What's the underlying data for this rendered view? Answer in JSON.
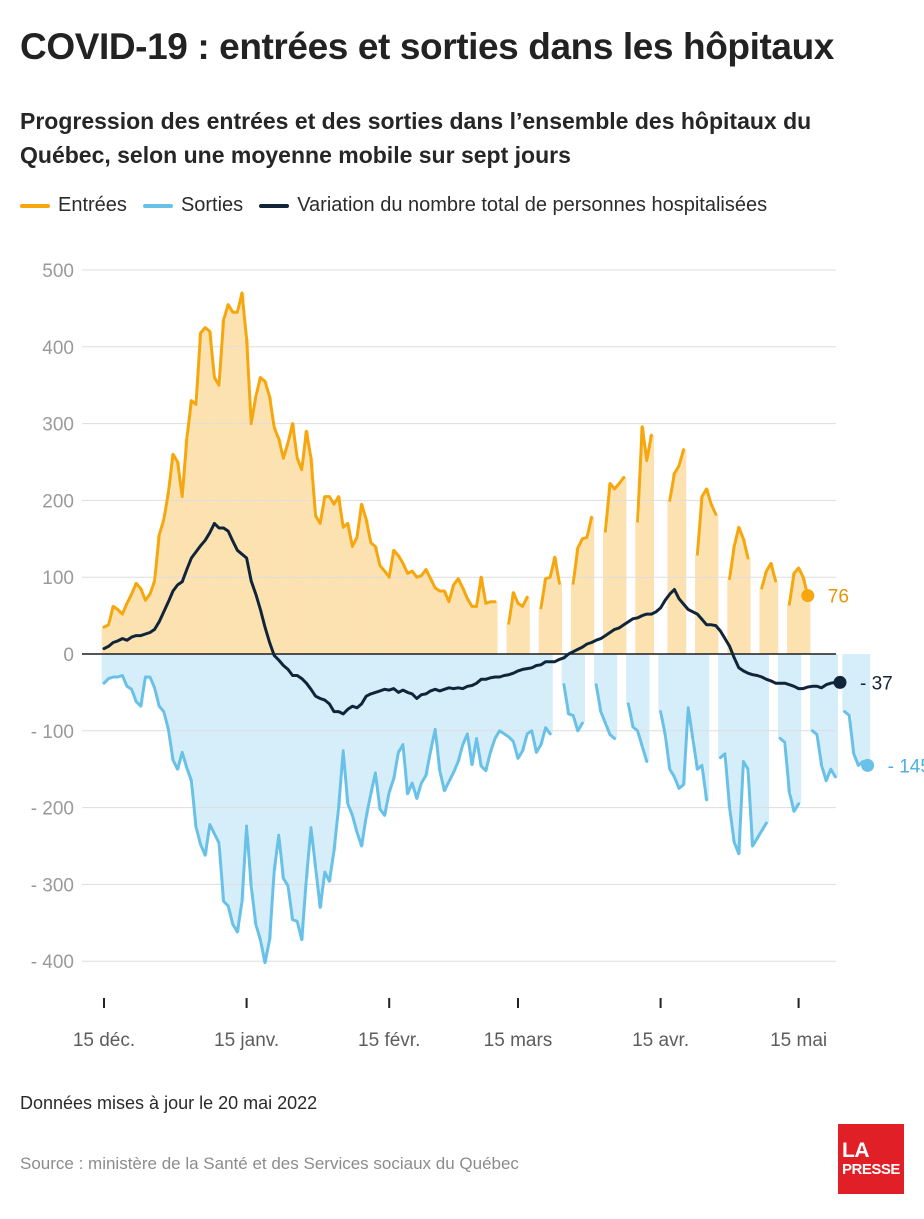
{
  "header": {
    "title": "COVID-19 : entrées et sorties dans les hôpitaux",
    "subtitle": "Progression des entrées et des sorties dans l’ensemble des hôpitaux du Québec, selon une moyenne mobile sur sept jours"
  },
  "legend": {
    "entrees": "Entrées",
    "sorties": "Sorties",
    "variation": "Variation du nombre total de personnes hospitalisées"
  },
  "colors": {
    "entrees": "#f5a70d",
    "entrees_fill": "#fde2b1",
    "sorties": "#69c1e8",
    "sorties_fill": "#d6eefa",
    "variation": "#10253a",
    "grid": "#dddddd"
  },
  "chart_data": {
    "type": "line",
    "title": "COVID-19 : entrées et sorties dans les hôpitaux",
    "x_unit": "days since 15 déc. 2021 (daily, 0 = 15 déc.)",
    "ylim": [
      -400,
      500
    ],
    "yticks": [
      500,
      400,
      300,
      200,
      100,
      0,
      -100,
      -200,
      -300,
      -400
    ],
    "ytick_labels": [
      "500",
      "400",
      "300",
      "200",
      "100",
      "0",
      "- 100",
      "- 200",
      "- 300",
      "- 400"
    ],
    "xticks": [
      {
        "day": 0,
        "label": "15 déc."
      },
      {
        "day": 31,
        "label": "15 janv."
      },
      {
        "day": 62,
        "label": "15 févr."
      },
      {
        "day": 90,
        "label": "15 mars"
      },
      {
        "day": 121,
        "label": "15 avr."
      },
      {
        "day": 151,
        "label": "15 mai"
      }
    ],
    "grid": true,
    "legend_position": "top",
    "series": [
      {
        "name": "Entrées",
        "key": "entrees",
        "values": [
          35,
          38,
          62,
          58,
          52,
          66,
          78,
          92,
          85,
          70,
          78,
          95,
          155,
          175,
          210,
          260,
          250,
          205,
          280,
          330,
          325,
          418,
          425,
          420,
          360,
          350,
          435,
          455,
          445,
          445,
          470,
          410,
          300,
          335,
          360,
          355,
          335,
          295,
          280,
          255,
          275,
          300,
          255,
          240,
          290,
          255,
          180,
          170,
          205,
          205,
          195,
          205,
          165,
          170,
          140,
          152,
          195,
          175,
          145,
          140,
          115,
          108,
          100,
          135,
          128,
          118,
          105,
          108,
          100,
          102,
          110,
          98,
          86,
          82,
          82,
          68,
          90,
          98,
          86,
          72,
          62,
          62,
          100,
          66,
          68,
          68,
          null,
          null,
          40,
          80,
          66,
          62,
          74,
          null,
          null,
          60,
          98,
          100,
          126,
          92,
          null,
          null,
          92,
          138,
          150,
          152,
          178,
          null,
          null,
          160,
          222,
          215,
          222,
          230,
          null,
          null,
          173,
          296,
          252,
          285,
          null,
          null,
          null,
          200,
          235,
          245,
          266,
          null,
          null,
          130,
          205,
          215,
          195,
          182,
          null,
          null,
          98,
          140,
          165,
          150,
          125,
          null,
          null,
          86,
          108,
          118,
          95,
          null,
          null,
          65,
          105,
          112,
          100,
          76
        ]
      },
      {
        "name": "Sorties",
        "key": "sorties",
        "values": [
          -38,
          -32,
          -30,
          -30,
          -28,
          -42,
          -46,
          -62,
          -68,
          -30,
          -30,
          -44,
          -68,
          -75,
          -98,
          -138,
          -150,
          -128,
          -148,
          -165,
          -225,
          -248,
          -262,
          -222,
          -234,
          -246,
          -322,
          -328,
          -352,
          -362,
          -322,
          -224,
          -302,
          -352,
          -372,
          -402,
          -372,
          -282,
          -236,
          -292,
          -302,
          -346,
          -348,
          -372,
          -292,
          -226,
          -278,
          -330,
          -284,
          -296,
          -256,
          -200,
          -126,
          -195,
          -210,
          -232,
          -250,
          -212,
          -182,
          -155,
          -202,
          -210,
          -180,
          -162,
          -128,
          -118,
          -182,
          -168,
          -188,
          -168,
          -158,
          -126,
          -98,
          -152,
          -178,
          -166,
          -154,
          -140,
          -118,
          -104,
          -144,
          -110,
          -146,
          -152,
          -128,
          -110,
          -100,
          -104,
          -108,
          -114,
          -136,
          -126,
          -104,
          -100,
          -128,
          -118,
          -96,
          -104,
          null,
          null,
          -40,
          -78,
          -80,
          -100,
          -90,
          null,
          null,
          -40,
          -75,
          -90,
          -105,
          -110,
          null,
          null,
          -65,
          -95,
          -100,
          -120,
          -140,
          null,
          null,
          -75,
          -105,
          -150,
          -160,
          -175,
          -170,
          -70,
          -110,
          -150,
          -145,
          -190,
          null,
          null,
          -135,
          -130,
          -200,
          -245,
          -260,
          -140,
          -150,
          -250,
          -240,
          -230,
          -220,
          null,
          null,
          -110,
          -115,
          -180,
          -205,
          -195,
          null,
          null,
          -100,
          -105,
          -145,
          -165,
          -150,
          -160,
          null,
          -75,
          -80,
          -130,
          -145,
          -140,
          -145
        ]
      },
      {
        "name": "Variation du nombre total de personnes hospitalisées",
        "key": "variation",
        "values": [
          7,
          10,
          15,
          17,
          20,
          18,
          22,
          24,
          24,
          26,
          28,
          32,
          42,
          55,
          68,
          82,
          90,
          94,
          110,
          125,
          133,
          141,
          148,
          158,
          170,
          164,
          164,
          160,
          147,
          135,
          130,
          125,
          95,
          78,
          58,
          35,
          15,
          -2,
          -8,
          -15,
          -20,
          -28,
          -28,
          -32,
          -38,
          -46,
          -55,
          -58,
          -60,
          -65,
          -75,
          -75,
          -78,
          -72,
          -68,
          -70,
          -65,
          -55,
          -52,
          -50,
          -48,
          -46,
          -47,
          -45,
          -50,
          -47,
          -50,
          -52,
          -58,
          -53,
          -52,
          -48,
          -46,
          -48,
          -46,
          -44,
          -45,
          -44,
          -45,
          -42,
          -41,
          -38,
          -33,
          -33,
          -31,
          -30,
          -30,
          -28,
          -27,
          -25,
          -22,
          -20,
          -19,
          -18,
          -15,
          -14,
          -10,
          -10,
          -10,
          -7,
          -5,
          0,
          3,
          6,
          9,
          13,
          15,
          18,
          20,
          24,
          28,
          32,
          34,
          38,
          42,
          46,
          47,
          50,
          52,
          52,
          55,
          60,
          70,
          78,
          84,
          72,
          65,
          58,
          55,
          52,
          45,
          38,
          38,
          37,
          30,
          20,
          10,
          -5,
          -18,
          -22,
          -25,
          -27,
          -28,
          -30,
          -33,
          -35,
          -38,
          -38,
          -38,
          -40,
          -42,
          -45,
          -45,
          -43,
          -42,
          -42,
          -44,
          -40,
          -38,
          -37,
          -37
        ]
      }
    ],
    "end_labels": {
      "entrees": "76",
      "variation": "- 37",
      "sorties": "- 145"
    }
  },
  "footer": {
    "updated": "Données mises à jour le 20 mai 2022",
    "source": "Source : ministère de la Santé et des Services sociaux du Québec",
    "logo_line1": "LA",
    "logo_line2": "PRESSE"
  }
}
